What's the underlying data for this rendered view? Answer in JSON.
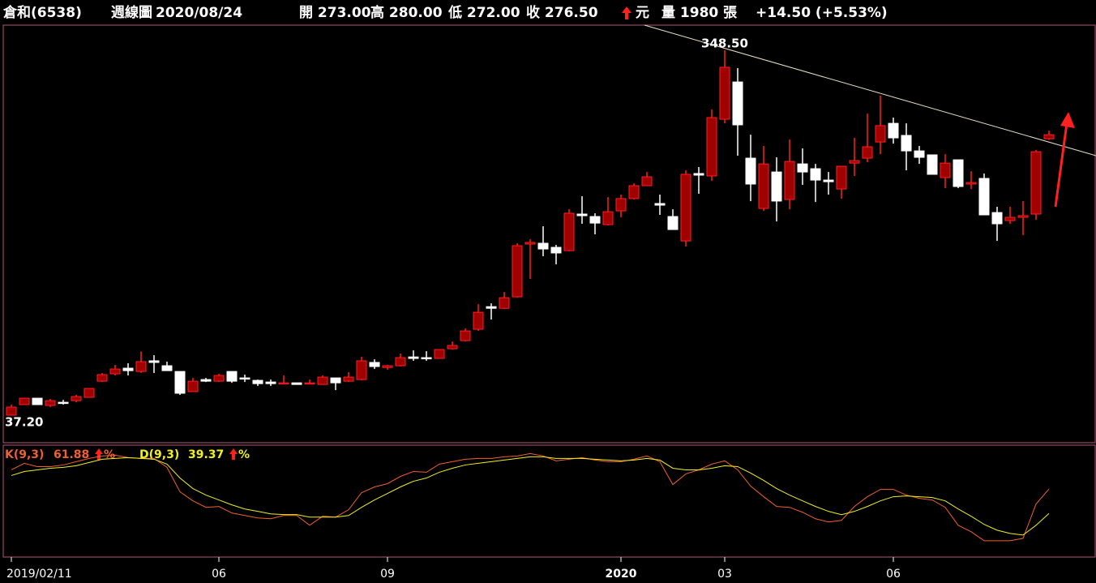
{
  "header": {
    "name": "倉和(6538)",
    "period": "週線圖",
    "date": "2020/08/24",
    "items": [
      "開 273.00",
      "高 280.00",
      "低 272.00",
      "收 276.50"
    ],
    "unit": "元",
    "volume": "量 1980 張",
    "change": "+14.50 (+5.53%)"
  },
  "chart_data": [
    {
      "type": "candlestick",
      "categories": [
        "2019/02/11",
        null,
        null,
        null,
        null,
        null,
        null,
        null,
        null,
        null,
        null,
        null,
        null,
        null,
        null,
        null,
        "06",
        null,
        null,
        null,
        null,
        null,
        null,
        null,
        null,
        null,
        null,
        null,
        null,
        "09",
        null,
        null,
        null,
        null,
        null,
        null,
        null,
        null,
        null,
        null,
        null,
        null,
        null,
        null,
        null,
        null,
        null,
        "2020",
        null,
        null,
        null,
        null,
        null,
        null,
        null,
        "03",
        null,
        null,
        null,
        null,
        null,
        null,
        null,
        null,
        null,
        null,
        null,
        null,
        "06",
        null,
        null,
        null,
        null,
        null,
        null,
        null,
        null,
        null,
        null,
        null,
        null
      ],
      "open": [
        37.2,
        46.2,
        51.7,
        45.5,
        48.2,
        49.6,
        52.4,
        66.2,
        72.5,
        77.3,
        74.5,
        83.6,
        79.4,
        74.5,
        57.3,
        67.6,
        66.2,
        74.5,
        69.0,
        66.9,
        65.5,
        64.1,
        64.8,
        64.1,
        63.4,
        69.0,
        66.2,
        67.6,
        82.2,
        77.9,
        79.4,
        86.9,
        86.3,
        85.6,
        93.9,
        100.8,
        110.5,
        129.8,
        128.4,
        138.2,
        183.2,
        183.9,
        180.4,
        177.6,
        208.8,
        206.7,
        199.8,
        211.5,
        222.0,
        233.0,
        217.8,
        206.7,
        185.9,
        243.4,
        241.3,
        289.7,
        321.5,
        256.5,
        213.6,
        244.7,
        221.2,
        251.6,
        247.5,
        237.8,
        230.2,
        252.3,
        256.5,
        270.3,
        286.2,
        275.9,
        262.7,
        259.3,
        239.9,
        255.1,
        234.4,
        239.2,
        210.1,
        203.2,
        206.0,
        208.8,
        273.0
      ],
      "high": [
        46.2,
        51.7,
        51.7,
        51.0,
        50.3,
        54.5,
        60.0,
        73.2,
        80.1,
        81.5,
        91.6,
        88.4,
        82.9,
        74.5,
        69.0,
        69.0,
        72.5,
        74.5,
        71.8,
        67.6,
        67.6,
        71.1,
        64.8,
        67.6,
        71.1,
        69.0,
        73.9,
        87.0,
        84.9,
        80.1,
        89.8,
        92.5,
        91.8,
        93.2,
        100.1,
        111.2,
        131.9,
        132.6,
        142.3,
        183.9,
        187.3,
        198.4,
        182.5,
        212.9,
        224.0,
        209.5,
        223.3,
        225.4,
        235.0,
        244.7,
        225.4,
        212.9,
        246.1,
        248.9,
        298.0,
        348.5,
        333.3,
        276.5,
        266.9,
        257.2,
        272.4,
        264.8,
        251.6,
        244.7,
        249.6,
        273.8,
        294.5,
        309.8,
        291.1,
        286.2,
        266.9,
        259.3,
        259.9,
        255.1,
        245.4,
        243.4,
        215.0,
        215.0,
        219.9,
        263.4,
        280.0
      ],
      "low": [
        37.2,
        46.2,
        46.2,
        44.1,
        46.2,
        48.2,
        52.4,
        65.5,
        71.1,
        71.1,
        73.2,
        73.2,
        75.2,
        54.5,
        57.3,
        65.5,
        65.5,
        64.8,
        65.5,
        62.1,
        62.1,
        63.4,
        63.4,
        63.4,
        63.4,
        58.6,
        65.5,
        66.9,
        76.6,
        76.0,
        78.7,
        83.6,
        83.6,
        85.6,
        93.2,
        100.1,
        109.1,
        118.8,
        127.8,
        137.5,
        153.4,
        172.8,
        165.9,
        176.9,
        200.5,
        191.5,
        199.1,
        206.0,
        221.2,
        233.0,
        208.1,
        195.6,
        181.1,
        226.1,
        237.1,
        286.2,
        258.6,
        219.8,
        211.5,
        202.5,
        212.9,
        233.7,
        219.1,
        225.4,
        221.9,
        241.3,
        253.0,
        259.9,
        268.9,
        246.1,
        251.6,
        242.7,
        230.9,
        230.9,
        230.2,
        208.1,
        185.9,
        200.5,
        190.8,
        203.9,
        272.0
      ],
      "close": [
        44.1,
        51.7,
        46.2,
        49.6,
        47.5,
        53.1,
        60.0,
        71.8,
        76.6,
        75.2,
        82.9,
        82.2,
        75.2,
        55.9,
        66.2,
        66.2,
        71.1,
        66.2,
        68.3,
        64.1,
        64.1,
        64.8,
        63.4,
        64.8,
        69.7,
        64.8,
        69.7,
        83.6,
        78.7,
        79.4,
        86.3,
        85.6,
        85.6,
        93.2,
        96.7,
        109.1,
        125.0,
        128.4,
        137.4,
        181.8,
        184.6,
        179.0,
        175.6,
        209.5,
        207.4,
        201.1,
        210.8,
        222.0,
        233.0,
        240.6,
        216.4,
        195.6,
        242.7,
        242.0,
        291.1,
        334.0,
        284.9,
        234.4,
        251.6,
        219.9,
        253.7,
        244.7,
        237.8,
        236.4,
        249.6,
        254.4,
        266.2,
        284.2,
        273.8,
        262.7,
        257.2,
        242.7,
        252.3,
        232.3,
        235.7,
        208.1,
        200.5,
        206.0,
        207.4,
        262.0,
        276.5
      ],
      "annotations": [
        "348.50",
        "37.20"
      ],
      "ylim": [
        13.7,
        369.3
      ],
      "up_color": "#a00000",
      "up_edge": "#ff2020",
      "down_color": "#ffffff",
      "year_label_color": "#ffff00"
    },
    {
      "type": "line",
      "series": [
        {
          "name": "K(9,3)",
          "value_label": "61.88",
          "color": "#f06030",
          "values": [
            79.5,
            85.5,
            82.5,
            82.5,
            84,
            87,
            90,
            92.3,
            93,
            90.8,
            90,
            90,
            81.8,
            59.3,
            51,
            45,
            45.8,
            39.8,
            37.5,
            35.3,
            34.5,
            37.5,
            37.5,
            28.5,
            36.8,
            36,
            42.8,
            58.5,
            63.8,
            66.8,
            73.5,
            78,
            77.3,
            84.8,
            87,
            89.3,
            90,
            90,
            91.5,
            92.3,
            94.5,
            92.3,
            87.8,
            89.3,
            90.8,
            88.5,
            87,
            87,
            89.3,
            92.3,
            87,
            66,
            75.8,
            79.5,
            84.8,
            87.8,
            79.5,
            64.5,
            54.8,
            45.8,
            45,
            40.5,
            34.5,
            31.5,
            33,
            45.8,
            54.8,
            61.5,
            61.5,
            56.3,
            53.3,
            51.8,
            45,
            28.5,
            22.5,
            14.3,
            14.3,
            14.3,
            16.5,
            48,
            61.88
          ]
        },
        {
          "name": "D(9,3)",
          "value_label": "39.37",
          "color": "#f0f020",
          "values": [
            74.3,
            78,
            79.5,
            81,
            81.8,
            83.3,
            86.3,
            89.3,
            90,
            90.8,
            90,
            89.3,
            84.8,
            72,
            62.3,
            56.3,
            51.8,
            47.3,
            43.5,
            41.3,
            39,
            38.3,
            38.3,
            36,
            36,
            36,
            37.5,
            45,
            51.8,
            57.8,
            63.8,
            69,
            72,
            77.3,
            81,
            84,
            85.5,
            87,
            88.5,
            90,
            91.5,
            91.5,
            90,
            90,
            90,
            89.3,
            88.5,
            87.8,
            88.5,
            90,
            88.5,
            81,
            79.5,
            79.5,
            81,
            83.3,
            82.5,
            76.5,
            69.8,
            62.3,
            56.3,
            51,
            45.8,
            41.3,
            38.3,
            41.3,
            45.8,
            51,
            54.8,
            55.5,
            54.8,
            54,
            51,
            43.5,
            36.8,
            29.3,
            24,
            21,
            19.5,
            28.5,
            39.37
          ]
        }
      ],
      "unit": "%",
      "ylim": [
        0,
        100
      ]
    }
  ]
}
